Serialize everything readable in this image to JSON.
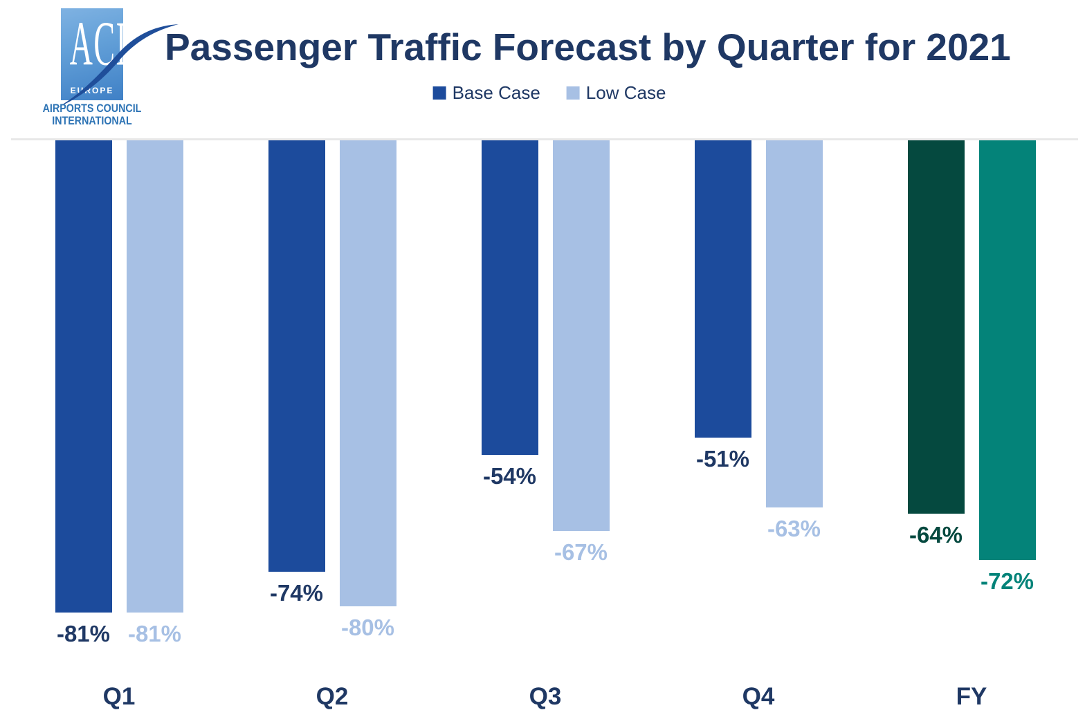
{
  "header": {
    "title": "Passenger Traffic Forecast by Quarter for 2021",
    "logo": {
      "acronym": "ACI",
      "region": "EUROPE",
      "org_line1": "AIRPORTS COUNCIL",
      "org_line2": "INTERNATIONAL"
    }
  },
  "legend": [
    {
      "label": "Base Case",
      "color": "#1c4b9c"
    },
    {
      "label": "Low Case",
      "color": "#a7c0e4"
    }
  ],
  "chart_data": {
    "type": "bar",
    "title": "Passenger Traffic Forecast by Quarter for 2021",
    "categories": [
      "Q1",
      "Q2",
      "Q3",
      "Q4",
      "FY"
    ],
    "series": [
      {
        "name": "Base Case",
        "values": [
          -81,
          -74,
          -54,
          -51,
          -64
        ]
      },
      {
        "name": "Low Case",
        "values": [
          -81,
          -80,
          -67,
          -63,
          -72
        ]
      }
    ],
    "data_labels": [
      [
        "-81%",
        "-81%"
      ],
      [
        "-74%",
        "-80%"
      ],
      [
        "-54%",
        "-67%"
      ],
      [
        "-51%",
        "-63%"
      ],
      [
        "-64%",
        "-72%"
      ]
    ],
    "ylim": [
      -100,
      0
    ],
    "grid": false,
    "legend_position": "top",
    "orientation": "vertical-negative",
    "colors": {
      "quarter_base": "#1c4b9c",
      "quarter_low": "#a7c0e4",
      "fy_base": "#05493f",
      "fy_low": "#048379"
    },
    "label_colors": {
      "quarter_base": "#1f3864",
      "quarter_low": "#a7c0e4",
      "fy_base": "#05493f",
      "fy_low": "#048379"
    },
    "axis_line_color": "#e8e8e8"
  }
}
